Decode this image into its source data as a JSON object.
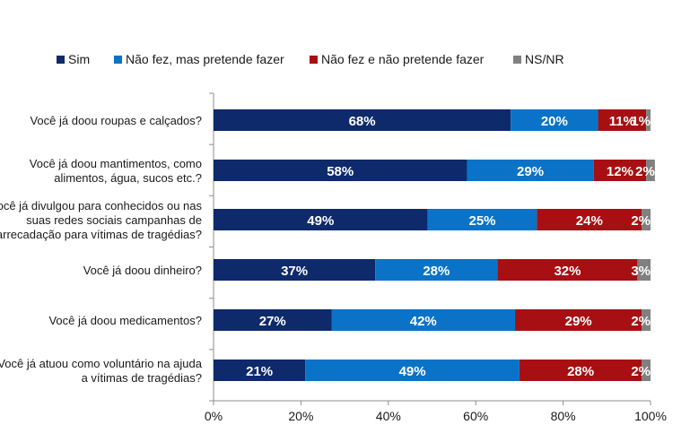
{
  "chart_data": {
    "type": "bar",
    "orientation": "horizontal",
    "stacked": true,
    "legend_position": "top",
    "grid": false,
    "xlim": [
      0,
      100
    ],
    "x_ticks": [
      "0%",
      "20%",
      "40%",
      "60%",
      "80%",
      "100%"
    ],
    "categories": [
      [
        "Você já doou roupas e calçados?"
      ],
      [
        "Você já doou mantimentos, como",
        "alimentos, água, sucos etc.?"
      ],
      [
        "Você já divulgou para conhecidos ou nas",
        "suas redes sociais campanhas de",
        "arrecadação para vítimas de tragédias?"
      ],
      [
        "Você já doou dinheiro?"
      ],
      [
        "Você já doou medicamentos?"
      ],
      [
        "Você já atuou como voluntário na ajuda",
        "a vítimas de tragédias?"
      ]
    ],
    "series": [
      {
        "name": "Sim",
        "color": "#0e2a6b",
        "values": [
          68,
          58,
          49,
          37,
          27,
          21
        ]
      },
      {
        "name": "Não fez, mas pretende fazer",
        "color": "#0a73c7",
        "values": [
          20,
          29,
          25,
          28,
          42,
          49
        ]
      },
      {
        "name": "Não fez e não pretende fazer",
        "color": "#a80f12",
        "values": [
          11,
          12,
          24,
          32,
          29,
          28
        ]
      },
      {
        "name": "NS/NR",
        "color": "#808080",
        "values": [
          1,
          2,
          2,
          3,
          2,
          2
        ]
      }
    ]
  }
}
